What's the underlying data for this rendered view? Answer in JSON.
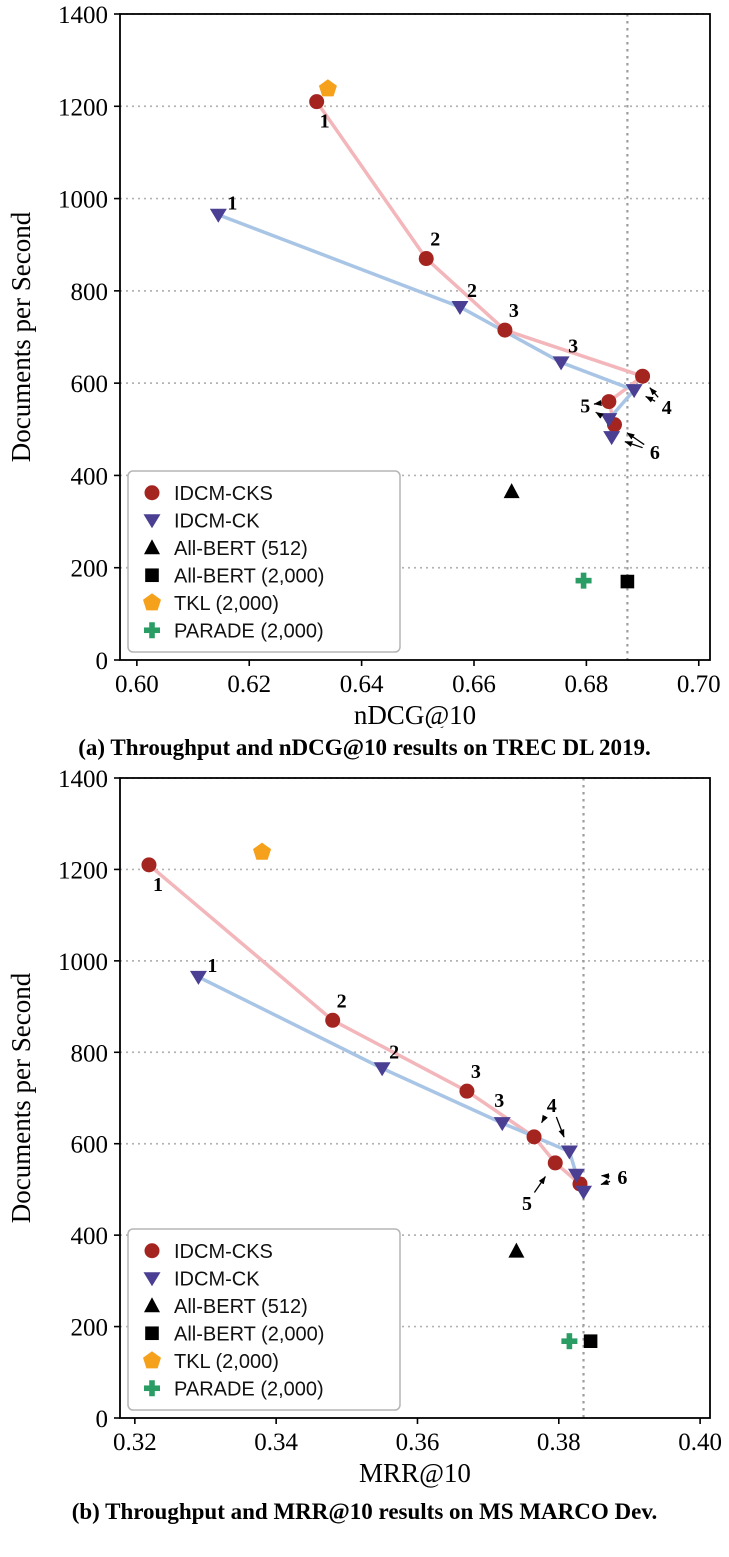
{
  "figures": [
    {
      "caption": "(a) Throughput and nDCG@10 results on TREC DL 2019."
    },
    {
      "caption": "(b) Throughput and MRR@10 results on MS MARCO Dev."
    }
  ],
  "colors": {
    "idcm_cks_marker": "#a42420",
    "idcm_cks_line": "#f3b6ba",
    "idcm_ck_marker": "#4a3f92",
    "idcm_ck_line": "#a9c5e6",
    "all_bert": "#000000",
    "tkl": "#f5a11c",
    "parade": "#2a9d64",
    "grid": "#b3b3b3"
  },
  "chart_data": [
    {
      "type": "scatter",
      "title": "",
      "xlabel": "nDCG@10",
      "ylabel": "Documents per Second",
      "xlim": [
        0.597,
        0.702
      ],
      "ylim": [
        0,
        1400
      ],
      "xticks": [
        0.6,
        0.62,
        0.64,
        0.66,
        0.68,
        0.7
      ],
      "xtick_labels": [
        "0.60",
        "0.62",
        "0.64",
        "0.66",
        "0.68",
        "0.70"
      ],
      "yticks": [
        0,
        200,
        400,
        600,
        800,
        1000,
        1200,
        1400
      ],
      "ytick_labels": [
        "0",
        "200",
        "400",
        "600",
        "800",
        "1000",
        "1200",
        "1400"
      ],
      "grid": "horizontal-dotted",
      "vline": 0.6873,
      "legend_position": "lower-left",
      "series": [
        {
          "name": "IDCM-CKS",
          "marker": "circle",
          "color": "#a42420",
          "line_color": "#f3b6ba",
          "points": [
            {
              "x": 0.632,
              "y": 1210,
              "label": "1",
              "ldx": 8,
              "ldy": 26
            },
            {
              "x": 0.6515,
              "y": 870,
              "label": "2",
              "ldx": 9,
              "ldy": -13
            },
            {
              "x": 0.6655,
              "y": 715,
              "label": "3",
              "ldx": 9,
              "ldy": -13
            },
            {
              "x": 0.69,
              "y": 615
            },
            {
              "x": 0.684,
              "y": 560
            },
            {
              "x": 0.685,
              "y": 510
            }
          ]
        },
        {
          "name": "IDCM-CK",
          "marker": "triangle-down",
          "color": "#4a3f92",
          "line_color": "#a9c5e6",
          "points": [
            {
              "x": 0.6145,
              "y": 965,
              "label": "1",
              "ldx": 14,
              "ldy": -5
            },
            {
              "x": 0.6575,
              "y": 765,
              "label": "2",
              "ldx": 12,
              "ldy": -10
            },
            {
              "x": 0.6755,
              "y": 645,
              "label": "3",
              "ldx": 12,
              "ldy": -10
            },
            {
              "x": 0.6885,
              "y": 585
            },
            {
              "x": 0.684,
              "y": 522
            },
            {
              "x": 0.6845,
              "y": 483
            }
          ]
        },
        {
          "name": "All-BERT (512)",
          "marker": "triangle-up",
          "color": "#000000",
          "points": [
            {
              "x": 0.6667,
              "y": 365
            }
          ]
        },
        {
          "name": "All-BERT (2,000)",
          "marker": "square",
          "color": "#000000",
          "points": [
            {
              "x": 0.6873,
              "y": 170
            }
          ]
        },
        {
          "name": "TKL (2,000)",
          "marker": "pentagon",
          "color": "#f5a11c",
          "points": [
            {
              "x": 0.634,
              "y": 1238
            }
          ]
        },
        {
          "name": "PARADE (2,000)",
          "marker": "plus",
          "color": "#2a9d64",
          "points": [
            {
              "x": 0.6795,
              "y": 172
            }
          ]
        }
      ],
      "annotations": [
        {
          "text": "4",
          "tx": 0.6943,
          "ty": 548,
          "arrows": [
            {
              "x": 0.69,
              "y": 608
            },
            {
              "x": 0.6888,
              "y": 582
            }
          ]
        },
        {
          "text": "5",
          "tx": 0.6798,
          "ty": 552,
          "arrows": [
            {
              "x": 0.6833,
              "y": 558
            },
            {
              "x": 0.6833,
              "y": 524
            }
          ]
        },
        {
          "text": "6",
          "tx": 0.6922,
          "ty": 451,
          "arrows": [
            {
              "x": 0.6856,
              "y": 506
            },
            {
              "x": 0.685,
              "y": 481
            }
          ]
        }
      ]
    },
    {
      "type": "scatter",
      "title": "",
      "xlabel": "MRR@10",
      "ylabel": "Documents per Second",
      "xlim": [
        0.3179,
        0.4014
      ],
      "ylim": [
        0,
        1400
      ],
      "xticks": [
        0.32,
        0.34,
        0.36,
        0.38,
        0.4
      ],
      "xtick_labels": [
        "0.32",
        "0.34",
        "0.36",
        "0.38",
        "0.40"
      ],
      "yticks": [
        0,
        200,
        400,
        600,
        800,
        1000,
        1200,
        1400
      ],
      "ytick_labels": [
        "0",
        "200",
        "400",
        "600",
        "800",
        "1000",
        "1200",
        "1400"
      ],
      "grid": "horizontal-dotted",
      "vline": 0.3835,
      "legend_position": "lower-left",
      "series": [
        {
          "name": "IDCM-CKS",
          "marker": "circle",
          "color": "#a42420",
          "line_color": "#f3b6ba",
          "points": [
            {
              "x": 0.322,
              "y": 1210,
              "label": "1",
              "ldx": 9,
              "ldy": 26
            },
            {
              "x": 0.348,
              "y": 870,
              "label": "2",
              "ldx": 9,
              "ldy": -13
            },
            {
              "x": 0.367,
              "y": 715,
              "label": "3",
              "ldx": 9,
              "ldy": -13
            },
            {
              "x": 0.3765,
              "y": 615
            },
            {
              "x": 0.3795,
              "y": 558
            },
            {
              "x": 0.383,
              "y": 512
            }
          ]
        },
        {
          "name": "IDCM-CK",
          "marker": "triangle-down",
          "color": "#4a3f92",
          "line_color": "#a9c5e6",
          "points": [
            {
              "x": 0.329,
              "y": 965,
              "label": "1",
              "ldx": 14,
              "ldy": -5
            },
            {
              "x": 0.355,
              "y": 765,
              "label": "2",
              "ldx": 12,
              "ldy": -10
            },
            {
              "x": 0.372,
              "y": 645,
              "label": "3",
              "ldx": -3,
              "ldy": -16
            },
            {
              "x": 0.3815,
              "y": 583
            },
            {
              "x": 0.3825,
              "y": 532
            },
            {
              "x": 0.3835,
              "y": 495
            }
          ]
        },
        {
          "name": "All-BERT (512)",
          "marker": "triangle-up",
          "color": "#000000",
          "points": [
            {
              "x": 0.374,
              "y": 365
            }
          ]
        },
        {
          "name": "All-BERT (2,000)",
          "marker": "square",
          "color": "#000000",
          "points": [
            {
              "x": 0.3845,
              "y": 168
            }
          ]
        },
        {
          "name": "TKL (2,000)",
          "marker": "pentagon",
          "color": "#f5a11c",
          "points": [
            {
              "x": 0.338,
              "y": 1238
            }
          ]
        },
        {
          "name": "PARADE (2,000)",
          "marker": "plus",
          "color": "#2a9d64",
          "points": [
            {
              "x": 0.3815,
              "y": 168
            }
          ]
        }
      ],
      "annotations": [
        {
          "text": "4",
          "tx": 0.379,
          "ty": 685,
          "arrows": [
            {
              "x": 0.3768,
              "y": 625
            },
            {
              "x": 0.3813,
              "y": 592
            }
          ]
        },
        {
          "text": "5",
          "tx": 0.3755,
          "ty": 470,
          "arrows": [
            {
              "x": 0.379,
              "y": 548
            }
          ]
        },
        {
          "text": "6",
          "tx": 0.389,
          "ty": 527,
          "arrows": [
            {
              "x": 0.3845,
              "y": 532
            },
            {
              "x": 0.3845,
              "y": 503
            }
          ]
        }
      ]
    }
  ]
}
